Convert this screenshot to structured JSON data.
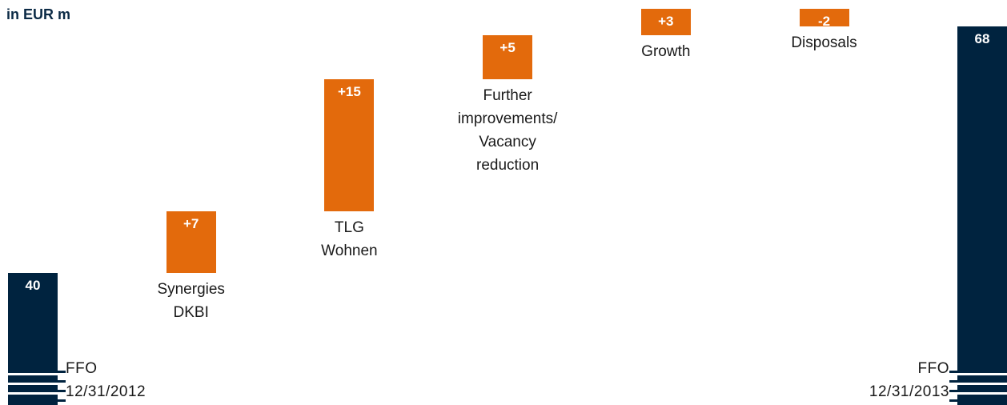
{
  "chart_data": {
    "type": "waterfall",
    "title": "in EUR m",
    "categories": [
      "FFO\n12/31/2012",
      "Synergies\nDKBI",
      "TLG\nWohnen",
      "Further\nimprovements/\nVacancy\nreduction",
      "Growth",
      "Disposals",
      "FFO\n12/31/2013"
    ],
    "values": [
      40,
      7,
      15,
      5,
      3,
      -2,
      68
    ],
    "value_labels": [
      "40",
      "+7",
      "+15",
      "+5",
      "+3",
      "-2",
      "68"
    ],
    "total_color": "#00233f",
    "step_color": "#e36a0c",
    "ylim": [
      25,
      71
    ]
  }
}
